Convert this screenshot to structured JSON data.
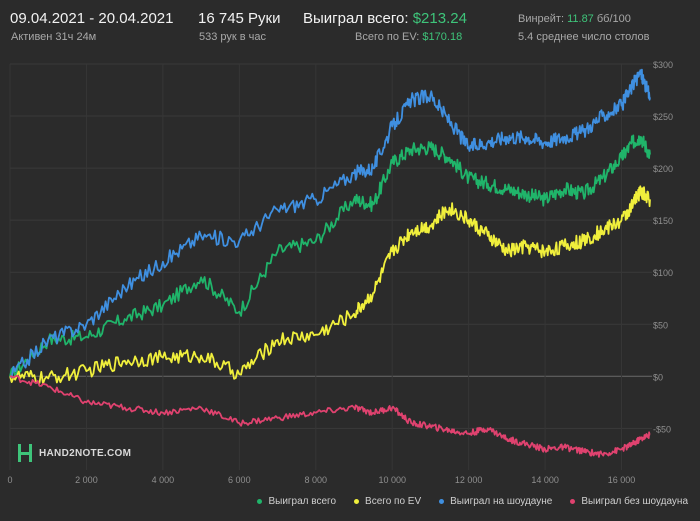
{
  "header": {
    "date_range": "09.04.2021 - 20.04.2021",
    "active": "Активен 31ч 24м",
    "hands": "16 745 Руки",
    "hands_per_hour": "533 рук в час",
    "won_total_label": "Выиграл всего:",
    "won_total_value": "$213.24",
    "ev_label": "Всего по EV:",
    "ev_value": "$170.18",
    "winrate_label": "Винрейт:",
    "winrate_value": "11.87",
    "winrate_unit": "бб/100",
    "tables": "5.4 среднее число столов"
  },
  "logo": {
    "text": "HAND2NOTE.COM"
  },
  "colors": {
    "background": "#2b2b2b",
    "won_total": "#20b46a",
    "ev": "#f0ef3c",
    "showdown": "#3f8fe0",
    "non_showdown": "#e0426f",
    "accent_green": "#3ec47a"
  },
  "chart_data": {
    "type": "line",
    "xlim": [
      0,
      16745
    ],
    "ylim": [
      -90,
      300
    ],
    "x_ticks": [
      0,
      2000,
      4000,
      6000,
      8000,
      10000,
      12000,
      14000,
      16000
    ],
    "x_tick_labels": [
      "0",
      "2 000",
      "4 000",
      "6 000",
      "8 000",
      "10 000",
      "12 000",
      "14 000",
      "16 000"
    ],
    "y_ticks": [
      -50,
      0,
      50,
      100,
      150,
      200,
      250,
      300
    ],
    "y_tick_labels": [
      "-$50",
      "$0",
      "$50",
      "$100",
      "$150",
      "$200",
      "$250",
      "$300"
    ],
    "x": [
      0,
      1000,
      2000,
      3000,
      4000,
      5000,
      6000,
      7000,
      8000,
      9000,
      9500,
      10000,
      10500,
      11000,
      11500,
      12000,
      12500,
      13000,
      13500,
      14000,
      14500,
      15000,
      15500,
      16000,
      16300,
      16500,
      16745
    ],
    "series": [
      {
        "name": "Выиграл всего",
        "color": "#20b46a",
        "values": [
          0,
          35,
          38,
          55,
          68,
          95,
          62,
          120,
          130,
          170,
          165,
          205,
          218,
          220,
          210,
          190,
          185,
          180,
          175,
          170,
          180,
          175,
          190,
          210,
          225,
          230,
          213
        ]
      },
      {
        "name": "Всего по EV",
        "color": "#f0ef3c",
        "values": [
          0,
          -2,
          5,
          15,
          18,
          20,
          2,
          35,
          40,
          60,
          80,
          120,
          140,
          145,
          162,
          150,
          135,
          120,
          125,
          120,
          125,
          130,
          140,
          150,
          165,
          178,
          170
        ]
      },
      {
        "name": "Выиграл на шоудауне",
        "color": "#3f8fe0",
        "values": [
          0,
          35,
          50,
          85,
          110,
          135,
          130,
          160,
          170,
          195,
          200,
          240,
          265,
          270,
          245,
          220,
          225,
          230,
          230,
          225,
          230,
          235,
          250,
          260,
          280,
          292,
          268
        ]
      },
      {
        "name": "Выиграл без шоудауна",
        "color": "#e0426f",
        "values": [
          0,
          -10,
          -25,
          -30,
          -35,
          -30,
          -45,
          -40,
          -35,
          -30,
          -35,
          -30,
          -45,
          -48,
          -52,
          -55,
          -50,
          -60,
          -65,
          -70,
          -68,
          -72,
          -75,
          -70,
          -65,
          -60,
          -56
        ]
      }
    ],
    "grid": true,
    "legend_position": "bottom-right"
  }
}
